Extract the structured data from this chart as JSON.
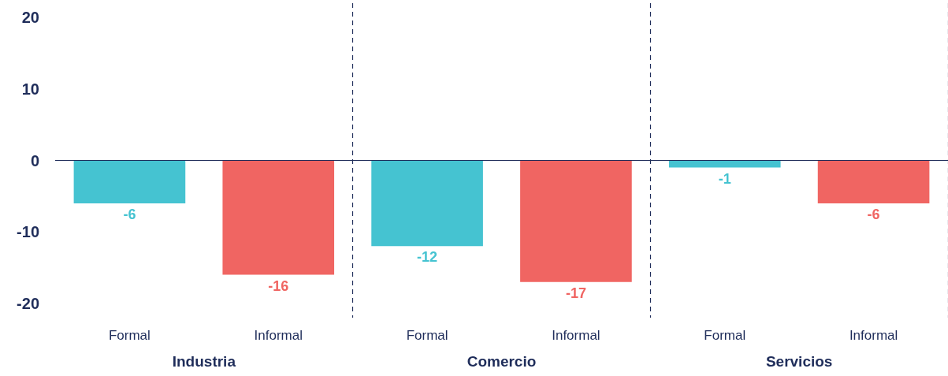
{
  "chart_data": {
    "type": "bar",
    "categories": [
      "Formal",
      "Informal",
      "Formal",
      "Informal",
      "Formal",
      "Informal"
    ],
    "values": [
      -6,
      -16,
      -12,
      -17,
      -1,
      -6
    ],
    "colors": [
      "#45c3d1",
      "#f06562",
      "#45c3d1",
      "#f06562",
      "#45c3d1",
      "#f06562"
    ],
    "ylim": [
      -22,
      22
    ],
    "yticks": [
      -20,
      -10,
      0,
      10,
      20
    ],
    "annotations": [
      "Industria",
      "Comercio",
      "Servicios"
    ],
    "data_labels": true,
    "grid": "x"
  }
}
